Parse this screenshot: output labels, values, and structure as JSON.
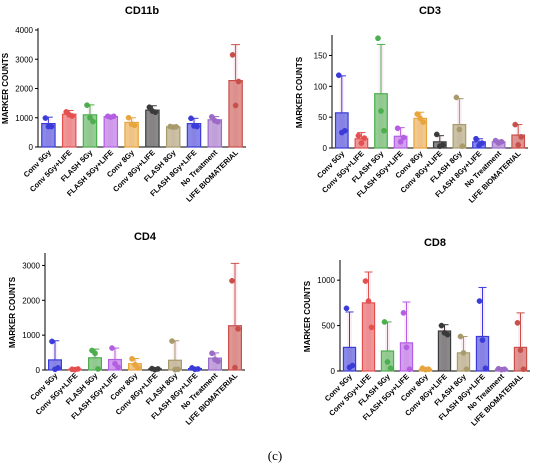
{
  "figure_label": "(c)",
  "chart_data": [
    {
      "type": "bar",
      "title": "CD11b",
      "ylabel": "MARKER COUNTS",
      "ylim": [
        0,
        4000
      ],
      "yticks": [
        0,
        1000,
        2000,
        3000,
        4000
      ],
      "categories": [
        "Conv 5Gy",
        "Conv 5Gy+LIFE",
        "FLASH 5Gy",
        "FLASH 5Gy+LIFE",
        "Conv 8Gy",
        "Conv 8Gy+LIFE",
        "FLASH 8Gy",
        "FLASH 8Gy+LIFE",
        "No Treatment",
        "LIFE BIOMATERIAL"
      ],
      "colors": [
        "#3b3bd9",
        "#e45050",
        "#4cae4c",
        "#b45fe3",
        "#e8a53d",
        "#3a3a3a",
        "#a89a6a",
        "#3b3bd9",
        "#9b6bc7",
        "#c9504a"
      ],
      "values": [
        800,
        1120,
        1100,
        1040,
        840,
        1260,
        690,
        800,
        930,
        2270
      ],
      "errors": [
        220,
        130,
        340,
        40,
        160,
        150,
        20,
        180,
        110,
        1230
      ],
      "points": [
        [
          990,
          700,
          700
        ],
        [
          1200,
          1100,
          1060
        ],
        [
          1430,
          1000,
          870
        ],
        [
          1050,
          1020,
          1050
        ],
        [
          1000,
          780,
          740
        ],
        [
          1360,
          1230,
          1190
        ],
        [
          700,
          680,
          690
        ],
        [
          980,
          720,
          700
        ],
        [
          1030,
          900,
          860
        ],
        [
          3150,
          1420,
          2240
        ]
      ]
    },
    {
      "type": "bar",
      "title": "CD3",
      "ylabel": "MARKER COUNTS",
      "ylim": [
        0,
        180
      ],
      "yticks": [
        0,
        50,
        100,
        150
      ],
      "categories": [
        "Conv 5Gy",
        "Conv 5Gy+LIFE",
        "FLASH 5Gy",
        "FLASH 5Gy+LIFE",
        "Conv 8Gy",
        "Conv 8Gy+LIFE",
        "FLASH 8Gy",
        "FLASH 8Gy+LIFE",
        "No Treatment",
        "LIFE BIOMATERIAL"
      ],
      "colors": [
        "#3b3bd9",
        "#e45050",
        "#4cae4c",
        "#b45fe3",
        "#e8a53d",
        "#3a3a3a",
        "#a89a6a",
        "#3b3bd9",
        "#9b6bc7",
        "#c9504a"
      ],
      "values": [
        57,
        15,
        88,
        19,
        48,
        10,
        38,
        10,
        10,
        21
      ],
      "errors": [
        60,
        10,
        80,
        14,
        10,
        10,
        42,
        5,
        3,
        17
      ],
      "points": [
        [
          118,
          25,
          28
        ],
        [
          20,
          8,
          16
        ],
        [
          178,
          60,
          28
        ],
        [
          32,
          10,
          17
        ],
        [
          55,
          48,
          42
        ],
        [
          22,
          3,
          5
        ],
        [
          82,
          30,
          3
        ],
        [
          15,
          4,
          8
        ],
        [
          12,
          8,
          10
        ],
        [
          38,
          5,
          18
        ]
      ]
    },
    {
      "type": "bar",
      "title": "CD4",
      "ylabel": "MARKER COUNTS",
      "ylim": [
        0,
        3300
      ],
      "yticks": [
        0,
        1000,
        2000,
        3000
      ],
      "categories": [
        "Conv 5Gy",
        "Conv 5Gy+LIFE",
        "FLASH 5Gy",
        "FLASH 5Gy+LIFE",
        "Conv 8Gy",
        "Conv 8Gy+LIFE",
        "FLASH 8Gy",
        "FLASH 8Gy+LIFE",
        "No Treatment",
        "LIFE BIOMATERIAL"
      ],
      "colors": [
        "#3b3bd9",
        "#e45050",
        "#4cae4c",
        "#b45fe3",
        "#e8a53d",
        "#3a3a3a",
        "#a89a6a",
        "#3b3bd9",
        "#9b6bc7",
        "#c9504a"
      ],
      "values": [
        290,
        20,
        350,
        300,
        180,
        30,
        280,
        40,
        340,
        1270
      ],
      "errors": [
        550,
        20,
        250,
        330,
        150,
        20,
        560,
        20,
        150,
        1790
      ],
      "points": [
        [
          820,
          20,
          60
        ],
        [
          20,
          10,
          30
        ],
        [
          560,
          480,
          30
        ],
        [
          630,
          180,
          80
        ],
        [
          320,
          150,
          60
        ],
        [
          40,
          10,
          30
        ],
        [
          830,
          10,
          20
        ],
        [
          60,
          20,
          30
        ],
        [
          480,
          300,
          250
        ],
        [
          2560,
          70,
          1180
        ]
      ]
    },
    {
      "type": "bar",
      "title": "CD8",
      "ylabel": "MARKER COUNTS",
      "ylim": [
        0,
        1200
      ],
      "yticks": [
        0,
        500,
        1000
      ],
      "categories": [
        "Conv 5Gy",
        "Conv 5Gy+LIFE",
        "FLASH 5Gy",
        "FLASH 5Gy+LIFE",
        "Conv 8Gy",
        "Conv 8Gy+LIFE",
        "FLASH 8Gy",
        "FLASH 8Gy+LIFE",
        "No Treatment",
        "LIFE BIOMATERIAL"
      ],
      "colors": [
        "#3b3bd9",
        "#e45050",
        "#4cae4c",
        "#b45fe3",
        "#e8a53d",
        "#3a3a3a",
        "#a89a6a",
        "#3b3bd9",
        "#9b6bc7",
        "#c9504a"
      ],
      "values": [
        260,
        750,
        220,
        310,
        20,
        440,
        200,
        380,
        20,
        260
      ],
      "errors": [
        390,
        340,
        320,
        450,
        10,
        70,
        180,
        540,
        10,
        380
      ],
      "points": [
        [
          690,
          40,
          60
        ],
        [
          990,
          770,
          480
        ],
        [
          540,
          100,
          30
        ],
        [
          640,
          260,
          20
        ],
        [
          30,
          15,
          20
        ],
        [
          500,
          420,
          400
        ],
        [
          380,
          200,
          20
        ],
        [
          770,
          340,
          30
        ],
        [
          25,
          15,
          20
        ],
        [
          530,
          230,
          20
        ]
      ]
    }
  ]
}
